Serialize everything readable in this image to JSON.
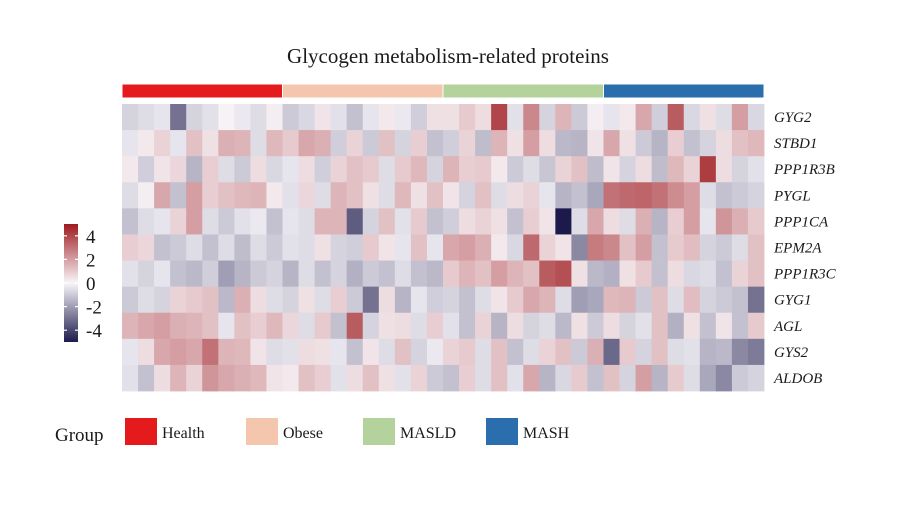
{
  "chart_data": {
    "type": "heatmap",
    "title": "Glycogen metabolism-related proteins",
    "rows": [
      "GYG2",
      "STBD1",
      "PPP1R3B",
      "PYGL",
      "PPP1CA",
      "EPM2A",
      "PPP1R3C",
      "GYG1",
      "AGL",
      "GYS2",
      "ALDOB"
    ],
    "group_title": "Group",
    "groups": [
      {
        "name": "Health",
        "color": "#e41a1c",
        "samples": 10
      },
      {
        "name": "Obese",
        "color": "#f4c6ae",
        "samples": 10
      },
      {
        "name": "MASLD",
        "color": "#b4d29b",
        "samples": 10
      },
      {
        "name": "MASH",
        "color": "#2a6ead",
        "samples": 10
      }
    ],
    "color_scale": {
      "min": -5,
      "max": 5,
      "ticks": [
        4,
        2,
        0,
        -2,
        -4
      ],
      "tick_labels": [
        "4",
        "2",
        "0",
        "-2",
        "-4"
      ],
      "low_color": "#1c1a4a",
      "mid_color": "#f8f6fa",
      "high_color": "#9e1a1e"
    },
    "values": [
      [
        -0.8,
        -0.6,
        -0.4,
        -3.0,
        -0.8,
        -0.5,
        0.1,
        -0.3,
        -0.6,
        0.2,
        -1.0,
        -0.7,
        0.4,
        -0.5,
        -1.2,
        -0.4,
        0.3,
        -0.3,
        -0.9,
        0.5,
        0.5,
        1.0,
        0.6,
        4.0,
        -0.5,
        2.5,
        -0.8,
        1.5,
        -1.0,
        0.2,
        -0.4,
        0.3,
        1.8,
        -0.9,
        3.5,
        -0.7,
        0.5,
        -0.6,
        2.0,
        -0.7
      ],
      [
        -0.4,
        0.3,
        0.8,
        -0.4,
        1.2,
        0.5,
        1.6,
        1.5,
        -0.6,
        1.4,
        1.0,
        1.8,
        1.6,
        -0.9,
        0.8,
        -1.0,
        1.2,
        -0.8,
        0.9,
        -1.2,
        -0.9,
        0.8,
        -1.3,
        1.5,
        0.5,
        2.0,
        0.6,
        -1.4,
        -1.5,
        0.4,
        1.8,
        0.5,
        -1.0,
        -1.5,
        0.9,
        -1.2,
        -0.8,
        0.6,
        1.2,
        1.4
      ],
      [
        0.3,
        -0.9,
        0.4,
        0.7,
        -1.5,
        0.9,
        -0.6,
        -1.0,
        0.6,
        -0.7,
        -0.4,
        0.6,
        -0.9,
        0.8,
        1.2,
        1.0,
        -0.6,
        1.0,
        1.4,
        -0.8,
        1.5,
        0.9,
        1.0,
        0.3,
        -1.0,
        -0.6,
        -1.1,
        0.8,
        1.2,
        -1.3,
        0.4,
        -0.8,
        0.6,
        -1.3,
        1.4,
        0.8,
        4.2,
        0.6,
        -0.8,
        -0.5
      ],
      [
        -0.6,
        0.2,
        1.8,
        -1.2,
        2.0,
        0.9,
        1.2,
        1.4,
        1.5,
        0.3,
        -0.5,
        0.7,
        -0.6,
        1.5,
        1.2,
        0.5,
        -0.6,
        1.4,
        0.5,
        1.2,
        0.4,
        -0.8,
        1.2,
        -0.6,
        0.6,
        0.8,
        -0.4,
        -1.5,
        -1.2,
        -1.8,
        3.0,
        3.2,
        3.3,
        3.0,
        2.4,
        2.0,
        -0.6,
        -1.2,
        -1.0,
        -0.8
      ],
      [
        -1.2,
        -0.6,
        -0.4,
        0.8,
        2.0,
        -0.6,
        -1.0,
        -0.5,
        -0.3,
        -1.2,
        -0.4,
        -0.6,
        1.5,
        1.5,
        -3.5,
        -0.8,
        1.2,
        -0.5,
        1.0,
        -1.2,
        -0.9,
        0.6,
        0.8,
        0.5,
        -1.2,
        0.9,
        0.4,
        -5.0,
        -0.6,
        1.8,
        0.6,
        -0.6,
        1.6,
        -1.5,
        0.9,
        2.0,
        -0.4,
        2.2,
        1.6,
        1.0
      ],
      [
        0.9,
        0.7,
        -1.2,
        -1.0,
        -0.6,
        -1.2,
        -0.6,
        -1.3,
        -0.6,
        -1.0,
        -0.5,
        -0.6,
        0.5,
        -0.8,
        -0.9,
        1.0,
        0.4,
        -0.4,
        1.2,
        -0.4,
        1.8,
        2.0,
        1.6,
        0.3,
        -0.7,
        3.2,
        0.8,
        0.4,
        -2.5,
        2.8,
        2.5,
        1.2,
        2.0,
        -1.2,
        1.0,
        1.3,
        -0.8,
        -1.0,
        -0.6,
        1.2
      ],
      [
        -0.5,
        -0.8,
        -0.4,
        -1.2,
        -1.4,
        -0.9,
        -2.0,
        -1.5,
        -1.0,
        -0.8,
        -1.5,
        -0.6,
        -1.2,
        -0.8,
        -1.6,
        -1.0,
        -1.2,
        -0.6,
        -1.2,
        -1.4,
        1.0,
        1.5,
        1.2,
        2.0,
        1.5,
        1.2,
        3.5,
        3.8,
        0.5,
        -1.4,
        -1.6,
        0.5,
        1.0,
        -1.2,
        0.6,
        -0.7,
        -0.6,
        -1.2,
        0.8,
        1.2
      ],
      [
        -1.0,
        -0.6,
        -0.8,
        0.8,
        1.0,
        1.2,
        -1.4,
        1.6,
        0.6,
        -0.6,
        -0.8,
        0.5,
        -0.6,
        0.9,
        -1.0,
        -3.0,
        0.6,
        -1.5,
        -0.4,
        -0.9,
        -0.8,
        -1.2,
        -0.6,
        0.4,
        1.0,
        1.8,
        1.5,
        -0.6,
        -2.0,
        -1.8,
        1.4,
        1.5,
        -1.0,
        1.2,
        -0.6,
        1.3,
        -0.8,
        -1.0,
        -1.2,
        -3.0
      ],
      [
        1.5,
        1.8,
        2.0,
        1.6,
        1.5,
        1.2,
        -0.4,
        1.2,
        0.9,
        1.4,
        0.7,
        -0.6,
        1.0,
        -1.2,
        3.5,
        -0.8,
        0.5,
        0.6,
        -0.6,
        0.9,
        -0.5,
        -1.2,
        0.8,
        -1.5,
        0.6,
        -0.8,
        -0.6,
        -1.4,
        0.5,
        -1.0,
        0.6,
        -0.8,
        -0.5,
        1.2,
        -1.6,
        0.5,
        -1.2,
        0.4,
        -1.2,
        1.0
      ],
      [
        -0.4,
        0.6,
        1.8,
        2.0,
        1.8,
        3.0,
        1.5,
        1.4,
        0.4,
        -0.6,
        -0.5,
        0.6,
        0.5,
        -0.4,
        -1.2,
        0.4,
        -0.6,
        1.2,
        -0.8,
        -0.3,
        0.8,
        1.0,
        -0.6,
        1.2,
        -1.2,
        -0.6,
        0.8,
        1.2,
        -1.0,
        1.6,
        -3.2,
        1.0,
        -0.8,
        1.2,
        -0.6,
        -0.5,
        -1.5,
        -1.4,
        -2.5,
        -2.8
      ],
      [
        -0.5,
        -1.2,
        0.6,
        1.5,
        0.8,
        2.2,
        1.8,
        1.6,
        1.4,
        0.4,
        0.3,
        1.2,
        0.9,
        -0.5,
        0.6,
        1.2,
        0.5,
        -0.5,
        0.8,
        -1.0,
        -1.2,
        0.9,
        -0.6,
        1.2,
        -0.5,
        1.8,
        -1.5,
        -0.7,
        1.0,
        -1.2,
        1.2,
        -0.8,
        2.0,
        -1.5,
        1.0,
        -0.6,
        -1.8,
        -2.5,
        -1.0,
        -0.8
      ]
    ]
  }
}
